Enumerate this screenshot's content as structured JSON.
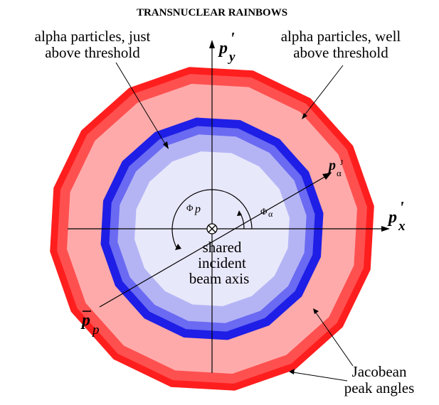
{
  "title": "TRANSNUCLEAR RAINBOWS",
  "labels": {
    "just_above_line1": "alpha particles, just",
    "just_above_line2": "above threshold",
    "well_above_line1": "alpha particles, well",
    "well_above_line2": "above threshold",
    "beam_line1": "shared",
    "beam_line2": "incident",
    "beam_line3": "beam axis",
    "jacobean_line1": "Jacobean",
    "jacobean_line2": "peak angles"
  },
  "axes": {
    "py_main": "p",
    "py_prime": "'",
    "py_sub": "y",
    "px_main": "p",
    "px_prime": "'",
    "px_sub": "x",
    "palpha_main": "p",
    "palpha_sub": "α",
    "palpha_sup": "J",
    "pp_main": "p",
    "pp_sub": "p",
    "phi_p_main": "Φ",
    "phi_p_sub": "p",
    "phi_alpha_main": "Φ",
    "phi_alpha_sub": "α"
  },
  "colors": {
    "red_outer": "#ff1e1e",
    "red_fill": "#ffaaaa",
    "blue_outer": "#1e1ee6",
    "blue_mid": "#6a6af2",
    "blue_light": "#b4b4f5",
    "blue_core": "#e8e8fb"
  }
}
